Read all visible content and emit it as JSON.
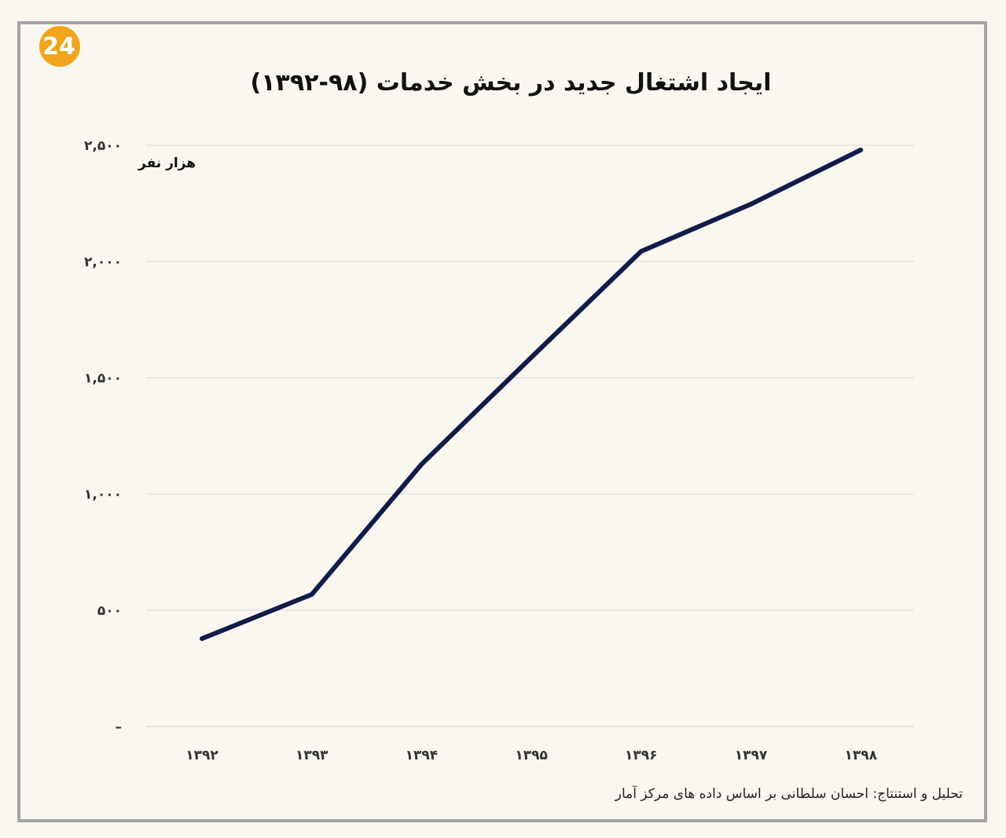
{
  "logo": {
    "text": "24",
    "color": "#f0a51c"
  },
  "chart_data": {
    "type": "line",
    "title": "ایجاد اشتغال جدید در بخش خدمات (۹۸-۱۳۹۲)",
    "ylabel": "هزار نفر",
    "xlabel": "",
    "categories": [
      "۱۳۹۲",
      "۱۳۹۳",
      "۱۳۹۴",
      "۱۳۹۵",
      "۱۳۹۶",
      "۱۳۹۷",
      "۱۳۹۸"
    ],
    "values": [
      378,
      568,
      1128,
      1588,
      2044,
      2247,
      2480
    ],
    "ylim": [
      0,
      2500
    ],
    "yticks": [
      0,
      500,
      1000,
      1500,
      2000,
      2500
    ],
    "ytick_labels": [
      "–",
      "۵۰۰",
      "۱,۰۰۰",
      "۱,۵۰۰",
      "۲,۰۰۰",
      "۲,۵۰۰"
    ],
    "grid": true,
    "line_color": "#101c4a"
  },
  "source": "تحلیل و استنتاج: احسان سلطانی بر اساس داده های مرکز آمار"
}
